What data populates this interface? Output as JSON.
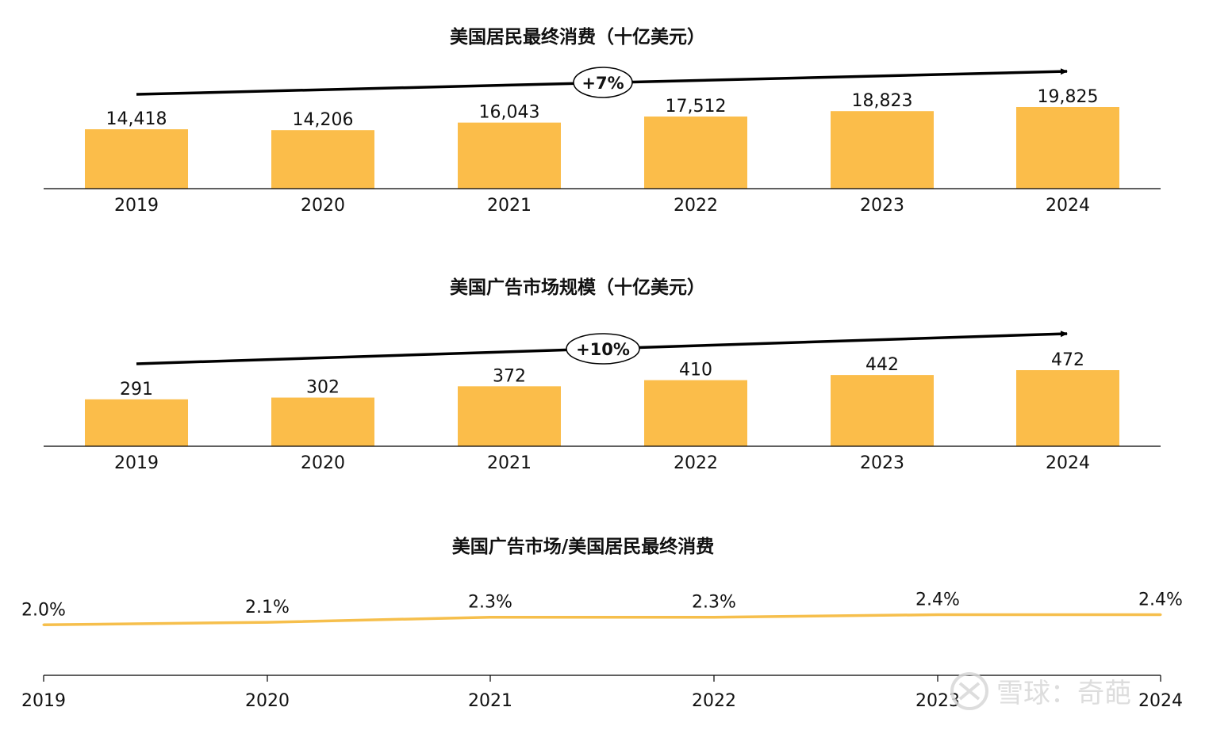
{
  "colors": {
    "bar": "#fbbd4a",
    "line": "#f6bf4c",
    "axis": "#000000",
    "text": "#111111"
  },
  "watermark": {
    "text": "雪球：奇葩",
    "icon": "snowball-logo-icon"
  },
  "chart_data": [
    {
      "type": "bar",
      "title": "美国居民最终消费（十亿美元）",
      "categories": [
        "2019",
        "2020",
        "2021",
        "2022",
        "2023",
        "2024"
      ],
      "values": [
        14418,
        14206,
        16043,
        17512,
        18823,
        19825
      ],
      "value_labels": [
        "14,418",
        "14,206",
        "16,043",
        "17,512",
        "18,823",
        "19,825"
      ],
      "annotation": "+7%",
      "ylim": [
        0,
        19825
      ],
      "grid": false
    },
    {
      "type": "bar",
      "title": "美国广告市场规模（十亿美元）",
      "categories": [
        "2019",
        "2020",
        "2021",
        "2022",
        "2023",
        "2024"
      ],
      "values": [
        291,
        302,
        372,
        410,
        442,
        472
      ],
      "value_labels": [
        "291",
        "302",
        "372",
        "410",
        "442",
        "472"
      ],
      "annotation": "+10%",
      "ylim": [
        0,
        472
      ],
      "grid": false
    },
    {
      "type": "line",
      "title": "美国广告市场/美国居民最终消费",
      "categories": [
        "2019",
        "2020",
        "2021",
        "2022",
        "2023",
        "2024"
      ],
      "values": [
        2.0,
        2.1,
        2.3,
        2.3,
        2.4,
        2.4
      ],
      "value_labels": [
        "2.0%",
        "2.1%",
        "2.3%",
        "2.3%",
        "2.4%",
        "2.4%"
      ],
      "ylim": [
        0,
        40
      ],
      "grid": false
    }
  ]
}
